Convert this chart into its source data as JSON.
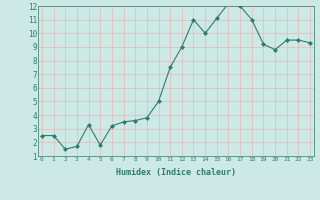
{
  "x": [
    0,
    1,
    2,
    3,
    4,
    5,
    6,
    7,
    8,
    9,
    10,
    11,
    12,
    13,
    14,
    15,
    16,
    17,
    18,
    19,
    20,
    21,
    22,
    23
  ],
  "y": [
    2.5,
    2.5,
    1.5,
    1.7,
    3.3,
    1.8,
    3.2,
    3.5,
    3.6,
    3.8,
    5.0,
    7.5,
    9.0,
    11.0,
    10.0,
    11.1,
    12.2,
    12.0,
    11.0,
    9.2,
    8.8,
    9.5,
    9.5,
    9.3
  ],
  "xlabel": "Humidex (Indice chaleur)",
  "ylim": [
    1,
    12
  ],
  "xlim": [
    -0.3,
    23.3
  ],
  "yticks": [
    1,
    2,
    3,
    4,
    5,
    6,
    7,
    8,
    9,
    10,
    11,
    12
  ],
  "xticks": [
    0,
    1,
    2,
    3,
    4,
    5,
    6,
    7,
    8,
    9,
    10,
    11,
    12,
    13,
    14,
    15,
    16,
    17,
    18,
    19,
    20,
    21,
    22,
    23
  ],
  "xtick_labels": [
    "0",
    "1",
    "2",
    "3",
    "4",
    "5",
    "6",
    "7",
    "8",
    "9",
    "10",
    "11",
    "12",
    "13",
    "14",
    "15",
    "16",
    "17",
    "18",
    "19",
    "20",
    "21",
    "22",
    "23"
  ],
  "line_color": "#2d7d6e",
  "marker_color": "#2d7d6e",
  "bg_color": "#cce9e5",
  "grid_major_color": "#f0c8c8",
  "grid_minor_color": "#d8eee8",
  "label_color": "#2d7d6e",
  "xlabel_fontsize": 6.0,
  "tick_fontsize_x": 4.5,
  "tick_fontsize_y": 5.5
}
